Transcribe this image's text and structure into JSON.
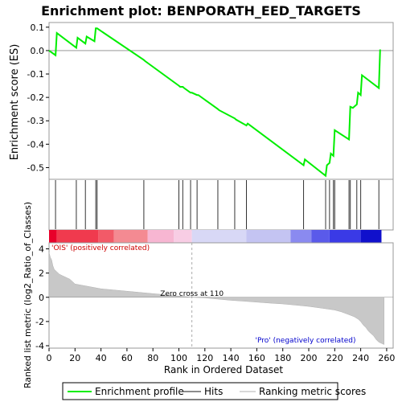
{
  "chart_data": {
    "type": "line",
    "title": "Enrichment plot: BENPORATH_EED_TARGETS",
    "xlabel": "Rank in Ordered Dataset",
    "es_panel": {
      "ylabel": "Enrichment score (ES)",
      "ylim": [
        -0.55,
        0.12
      ],
      "yticks": [
        "0.1",
        "0.0",
        "-0.1",
        "-0.2",
        "-0.3",
        "-0.4",
        "-0.5"
      ],
      "ytick_values": [
        0.1,
        0.0,
        -0.1,
        -0.2,
        -0.3,
        -0.4,
        -0.5
      ],
      "series": [
        {
          "name": "Enrichment profile",
          "color": "#00ee00",
          "x": [
            0,
            5,
            6,
            21,
            22,
            28,
            29,
            35,
            36,
            37,
            73,
            74,
            100,
            101,
            103,
            104,
            109,
            110,
            114,
            115,
            130,
            131,
            143,
            144,
            152,
            153,
            196,
            197,
            213,
            214,
            216,
            217,
            219,
            220,
            231,
            232,
            234,
            235,
            237,
            238,
            240,
            241,
            254,
            255
          ],
          "y": [
            0.0,
            -0.02,
            0.075,
            0.012,
            0.055,
            0.03,
            0.06,
            0.04,
            0.095,
            0.095,
            -0.04,
            -0.045,
            -0.15,
            -0.155,
            -0.155,
            -0.16,
            -0.18,
            -0.18,
            -0.19,
            -0.19,
            -0.25,
            -0.255,
            -0.29,
            -0.295,
            -0.32,
            -0.312,
            -0.49,
            -0.465,
            -0.535,
            -0.49,
            -0.48,
            -0.44,
            -0.45,
            -0.34,
            -0.38,
            -0.24,
            -0.245,
            -0.24,
            -0.23,
            -0.18,
            -0.19,
            -0.105,
            -0.16,
            0.005
          ]
        }
      ]
    },
    "hits": [
      5,
      21,
      28,
      36,
      37,
      73,
      100,
      103,
      109,
      114,
      130,
      143,
      152,
      196,
      213,
      216,
      219,
      220,
      231,
      232,
      237,
      240,
      254
    ],
    "metric_panel": {
      "ylabel": "Ranked list metric (log2_Ratio_of_Classes)",
      "ylim": [
        -4.2,
        4.5
      ],
      "yticks": [
        "4",
        "2",
        "0",
        "-2",
        "-4"
      ],
      "ytick_values": [
        4,
        2,
        0,
        -2,
        -4
      ],
      "zero_cross_label": "Zero cross at 110",
      "zero_cross_x": 110,
      "pos_label": "'OIS' (positively correlated)",
      "neg_label": "'Pro' (negatively correlated)",
      "pos_color": "#cc0000",
      "neg_color": "#0000cc",
      "profile_x": [
        0,
        1,
        2,
        3,
        4,
        6,
        8,
        10,
        12,
        14,
        16,
        18,
        20,
        25,
        30,
        40,
        50,
        60,
        70,
        80,
        90,
        100,
        110,
        120,
        130,
        140,
        150,
        160,
        170,
        180,
        190,
        200,
        210,
        220,
        225,
        230,
        235,
        238,
        240,
        242,
        244,
        246,
        248,
        250,
        252,
        254,
        256,
        258
      ],
      "profile_y": [
        3.7,
        3.3,
        3.1,
        2.6,
        2.3,
        2.1,
        1.9,
        1.8,
        1.7,
        1.6,
        1.5,
        1.3,
        1.1,
        1.0,
        0.9,
        0.7,
        0.6,
        0.5,
        0.4,
        0.3,
        0.2,
        0.1,
        0.0,
        -0.05,
        -0.15,
        -0.25,
        -0.32,
        -0.4,
        -0.48,
        -0.55,
        -0.65,
        -0.75,
        -0.9,
        -1.05,
        -1.2,
        -1.4,
        -1.6,
        -1.8,
        -2.0,
        -2.3,
        -2.5,
        -2.8,
        -3.0,
        -3.2,
        -3.5,
        -3.7,
        -3.8,
        -3.9
      ]
    },
    "xlim": [
      0,
      265
    ],
    "xticks": [
      "0",
      "20",
      "40",
      "60",
      "80",
      "100",
      "120",
      "140",
      "160",
      "180",
      "200",
      "220",
      "240",
      "260"
    ],
    "xtick_values": [
      0,
      20,
      40,
      60,
      80,
      100,
      120,
      140,
      160,
      180,
      200,
      220,
      240,
      260
    ],
    "heat_segments": [
      {
        "x0": 0,
        "x1": 6,
        "color": "#e8002a"
      },
      {
        "x0": 6,
        "x1": 38,
        "color": "#f03a4e"
      },
      {
        "x0": 38,
        "x1": 50,
        "color": "#f25a68"
      },
      {
        "x0": 50,
        "x1": 76,
        "color": "#f48a92"
      },
      {
        "x0": 76,
        "x1": 96,
        "color": "#f7b6d2"
      },
      {
        "x0": 96,
        "x1": 110,
        "color": "#f8cde4"
      },
      {
        "x0": 110,
        "x1": 152,
        "color": "#d8d8f6"
      },
      {
        "x0": 152,
        "x1": 186,
        "color": "#c4c4f2"
      },
      {
        "x0": 186,
        "x1": 202,
        "color": "#8a8af0"
      },
      {
        "x0": 202,
        "x1": 216,
        "color": "#5a5aea"
      },
      {
        "x0": 216,
        "x1": 240,
        "color": "#3a3ae6"
      },
      {
        "x0": 240,
        "x1": 256,
        "color": "#1010cc"
      }
    ],
    "legend": [
      {
        "label": "Enrichment profile",
        "color": "#00ee00",
        "kind": "line"
      },
      {
        "label": "Hits",
        "color": "#666666",
        "kind": "line"
      },
      {
        "label": "Ranking metric scores",
        "color": "#cccccc",
        "kind": "line"
      }
    ]
  }
}
